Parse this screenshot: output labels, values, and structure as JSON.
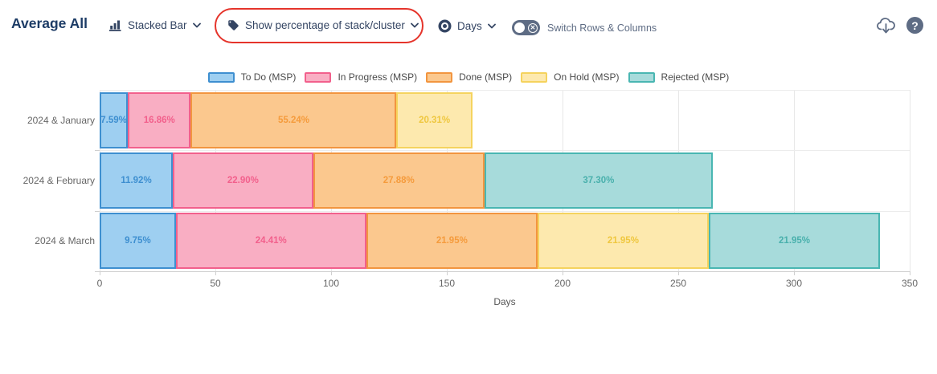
{
  "header": {
    "title": "Average All",
    "chart_type_control": {
      "label": "Stacked Bar"
    },
    "percentage_control": {
      "label": "Show percentage of stack/cluster"
    },
    "unit_control": {
      "label": "Days"
    },
    "switch_toggle": {
      "label": "Switch Rows & Columns",
      "state": "off",
      "off_glyph": "✕"
    },
    "help_glyph": "?"
  },
  "annotation": {
    "type": "red-ellipse-highlight",
    "color": "#E5342B",
    "target": "percentage_control"
  },
  "chart_data": {
    "type": "bar",
    "orientation": "horizontal",
    "stacked": true,
    "value_labels": "percent-of-stack",
    "xlabel": "Days",
    "xlim": [
      0,
      350
    ],
    "xticks": [
      0,
      50,
      100,
      150,
      200,
      250,
      300,
      350
    ],
    "grid": true,
    "legend_position": "top",
    "categories": [
      "2024 & January",
      "2024 & February",
      "2024 & March"
    ],
    "series": [
      {
        "name": "To Do (MSP)",
        "fill": "#9ECFF1",
        "stroke": "#3E8FD0",
        "label_color": "#3E8FD0",
        "percent": [
          7.59,
          11.92,
          9.75
        ],
        "days": [
          12.2,
          31.6,
          32.9
        ]
      },
      {
        "name": "In Progress (MSP)",
        "fill": "#F9AEC3",
        "stroke": "#F2608C",
        "label_color": "#F2608C",
        "percent": [
          16.86,
          22.9,
          24.41
        ],
        "days": [
          27.2,
          60.7,
          82.3
        ]
      },
      {
        "name": "Done (MSP)",
        "fill": "#FBC88E",
        "stroke": "#F2953F",
        "label_color": "#F59B3C",
        "percent": [
          55.24,
          27.88,
          21.95
        ],
        "days": [
          88.9,
          73.9,
          74.0
        ]
      },
      {
        "name": "On Hold (MSP)",
        "fill": "#FDE9AE",
        "stroke": "#F5D35E",
        "label_color": "#EFC73F",
        "percent": [
          20.31,
          0,
          21.95
        ],
        "days": [
          32.7,
          0,
          74.0
        ]
      },
      {
        "name": "Rejected (MSP)",
        "fill": "#A7DBDB",
        "stroke": "#49B6B2",
        "label_color": "#49B0AC",
        "percent": [
          0,
          37.3,
          21.95
        ],
        "days": [
          0,
          98.8,
          74.0
        ]
      }
    ],
    "stack_totals_days": [
      161,
      265,
      337
    ]
  }
}
